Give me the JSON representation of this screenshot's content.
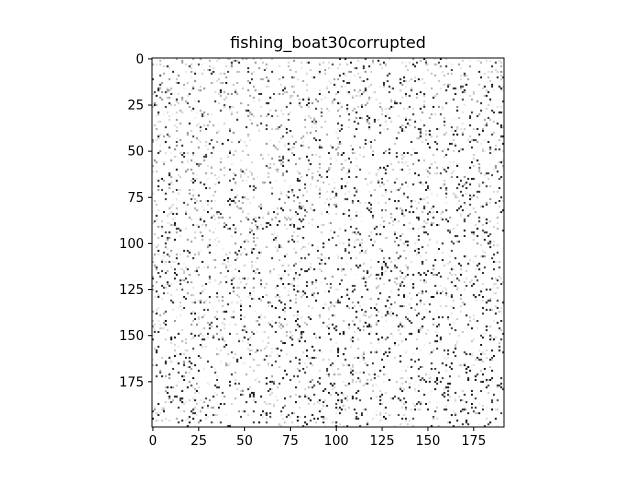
{
  "chart_data": {
    "type": "heatmap",
    "title": "fishing_boat30corrupted",
    "xlabel": "",
    "ylabel": "",
    "colormap": "gray",
    "background_value": 1.0,
    "image_width": 192,
    "image_height": 200,
    "xlim": [
      -0.5,
      191.5
    ],
    "ylim": [
      199.5,
      -0.5
    ],
    "x_ticks": [
      0,
      25,
      50,
      75,
      100,
      125,
      150,
      175
    ],
    "y_ticks": [
      0,
      25,
      50,
      75,
      100,
      125,
      150,
      175
    ],
    "x_tick_labels": [
      "0",
      "25",
      "50",
      "75",
      "100",
      "125",
      "150",
      "175"
    ],
    "y_tick_labels": [
      "0",
      "25",
      "50",
      "75",
      "100",
      "125",
      "150",
      "175"
    ],
    "noise_fraction": 0.3,
    "noise_seed": 30,
    "grid": false,
    "legend": "none"
  }
}
